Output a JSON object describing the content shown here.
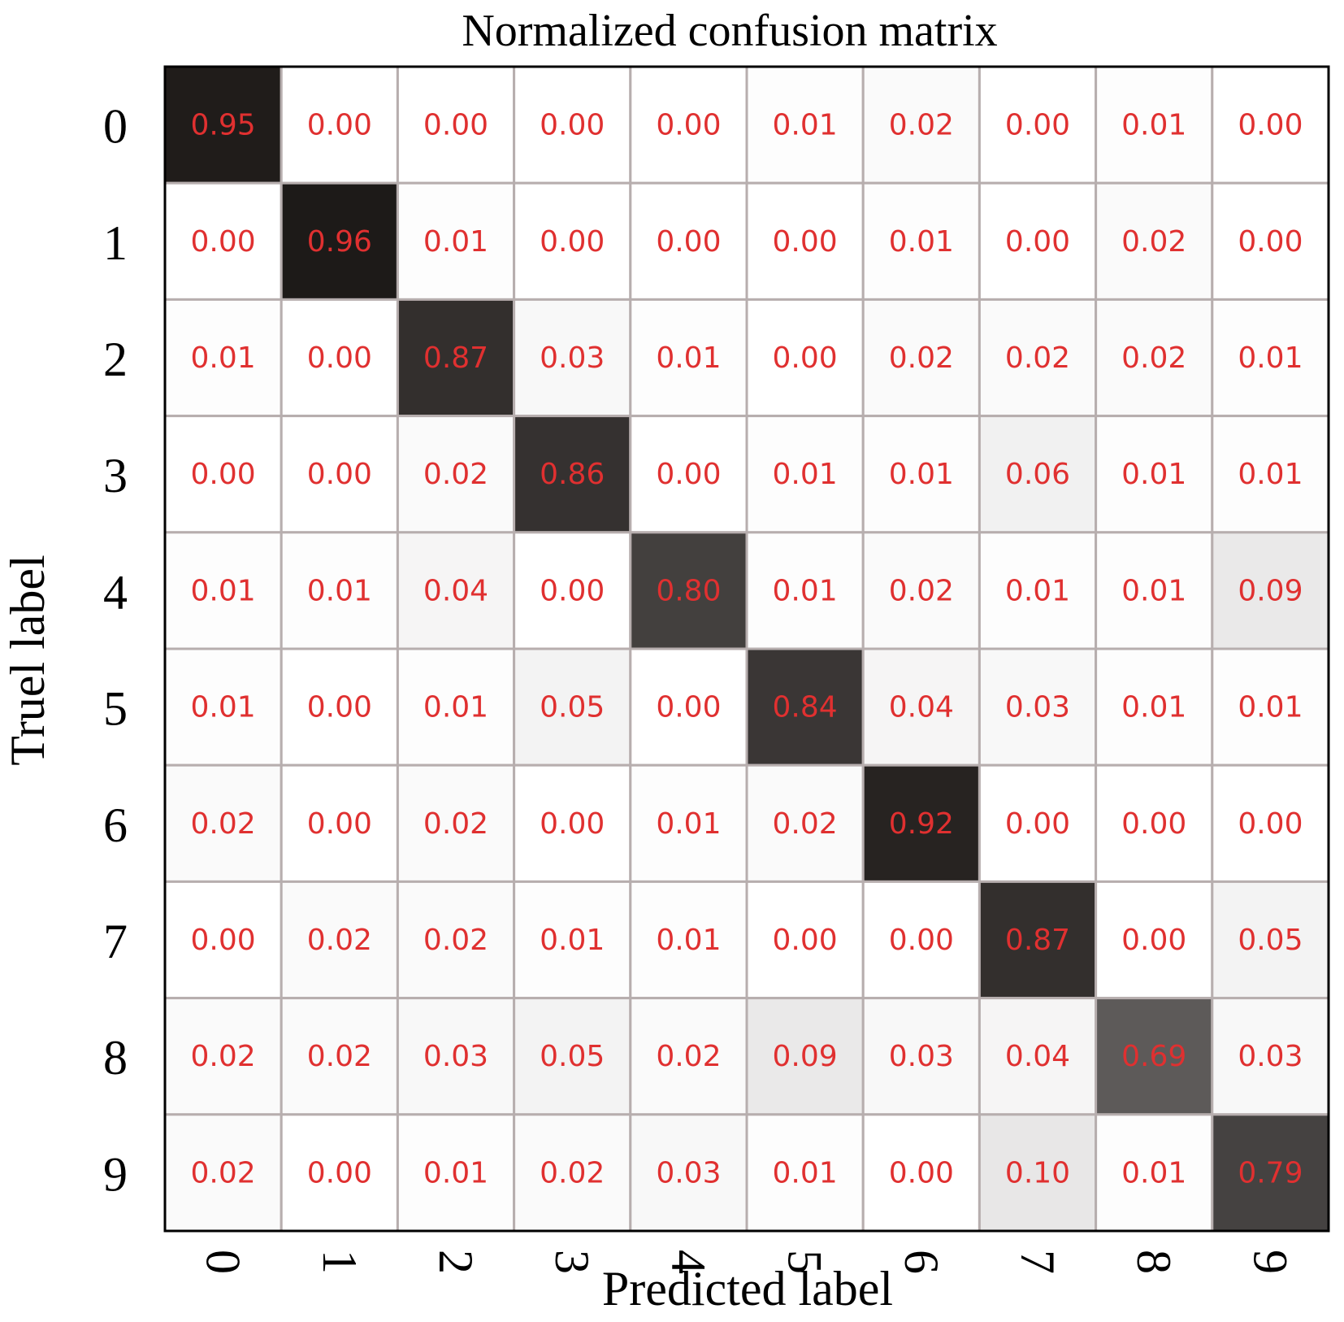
{
  "chart_data": {
    "type": "heatmap",
    "title": "Normalized confusion matrix",
    "xlabel": "Predicted label",
    "ylabel": "Truel label",
    "x_categories": [
      "0",
      "1",
      "2",
      "3",
      "4",
      "5",
      "6",
      "7",
      "8",
      "9"
    ],
    "y_categories": [
      "0",
      "1",
      "2",
      "3",
      "4",
      "5",
      "6",
      "7",
      "8",
      "9"
    ],
    "value_range": [
      0,
      1
    ],
    "colormap": "white-to-black",
    "annotation_color": "#e03030",
    "grid": true,
    "values": [
      [
        0.95,
        0.0,
        0.0,
        0.0,
        0.0,
        0.01,
        0.02,
        0.0,
        0.01,
        0.0
      ],
      [
        0.0,
        0.96,
        0.01,
        0.0,
        0.0,
        0.0,
        0.01,
        0.0,
        0.02,
        0.0
      ],
      [
        0.01,
        0.0,
        0.87,
        0.03,
        0.01,
        0.0,
        0.02,
        0.02,
        0.02,
        0.01
      ],
      [
        0.0,
        0.0,
        0.02,
        0.86,
        0.0,
        0.01,
        0.01,
        0.06,
        0.01,
        0.01
      ],
      [
        0.01,
        0.01,
        0.04,
        0.0,
        0.8,
        0.01,
        0.02,
        0.01,
        0.01,
        0.09
      ],
      [
        0.01,
        0.0,
        0.01,
        0.05,
        0.0,
        0.84,
        0.04,
        0.03,
        0.01,
        0.01
      ],
      [
        0.02,
        0.0,
        0.02,
        0.0,
        0.01,
        0.02,
        0.92,
        0.0,
        0.0,
        0.0
      ],
      [
        0.0,
        0.02,
        0.02,
        0.01,
        0.01,
        0.0,
        0.0,
        0.87,
        0.0,
        0.05
      ],
      [
        0.02,
        0.02,
        0.03,
        0.05,
        0.02,
        0.09,
        0.03,
        0.04,
        0.69,
        0.03
      ],
      [
        0.02,
        0.0,
        0.01,
        0.02,
        0.03,
        0.01,
        0.0,
        0.1,
        0.01,
        0.79
      ]
    ]
  }
}
